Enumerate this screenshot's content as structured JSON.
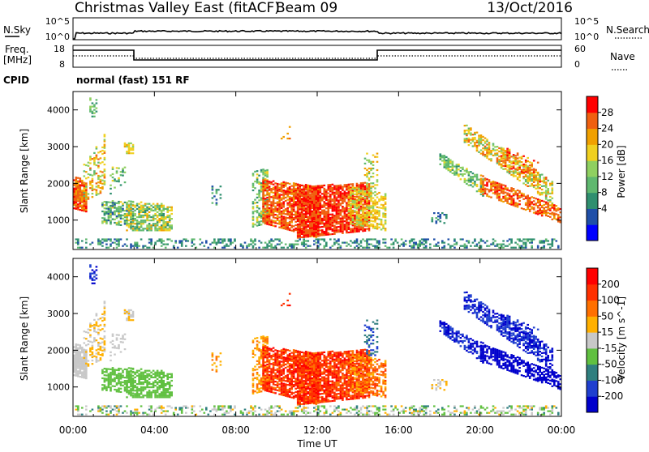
{
  "header": {
    "title": "Christmas Valley East (fitACF)",
    "beam": "Beam 09",
    "date": "13/Oct/2016"
  },
  "noise_panel": {
    "left_label": "N.Sky",
    "right_label": "N.Search",
    "left_ticks": [
      "10^5",
      "10^0"
    ],
    "right_ticks": [
      "10^5",
      "10^0"
    ]
  },
  "freq_panel": {
    "left_label_1": "Freq.",
    "left_label_2": "[MHz]",
    "right_label": "Nave",
    "left_ticks": [
      "18",
      "8"
    ],
    "right_ticks": [
      "60",
      "0"
    ]
  },
  "cpid": {
    "label": "CPID",
    "value": "normal (fast) 151 RF"
  },
  "colors": {
    "power": [
      "#0000ff",
      "#1f4fa8",
      "#2f8f6f",
      "#5fb86f",
      "#8fd060",
      "#f0d020",
      "#f0a000",
      "#f06010",
      "#ff0000"
    ],
    "velocity": [
      "#0000cc",
      "#1f3fcf",
      "#2f7f7f",
      "#60c040",
      "#c8c8c8",
      "#ffb000",
      "#ff7000",
      "#ff3000",
      "#ff0000"
    ]
  },
  "chart_data": [
    {
      "type": "heatmap",
      "name": "power",
      "ylabel": "Slant Range [km]",
      "colorbar_label": "Power [dB]",
      "colorbar_ticks": [
        "28",
        "24",
        "20",
        "16",
        "12",
        "8",
        "4"
      ],
      "y_ticks": [
        "4000",
        "3000",
        "2000",
        "1000"
      ],
      "ylim": [
        200,
        4500
      ],
      "xlim": [
        0,
        24
      ]
    },
    {
      "type": "heatmap",
      "name": "velocity",
      "ylabel": "Slant Range [km]",
      "colorbar_label": "Velocity [m s^-1]",
      "colorbar_ticks": [
        "200",
        "100",
        "50",
        "15",
        "-15",
        "-50",
        "-100",
        "-200"
      ],
      "y_ticks": [
        "4000",
        "3000",
        "2000",
        "1000"
      ],
      "ylim": [
        200,
        4500
      ],
      "xlim": [
        0,
        24
      ],
      "x_ticks": [
        "00:00",
        "04:00",
        "08:00",
        "12:00",
        "16:00",
        "20:00",
        "00:00"
      ],
      "xlabel": "Time UT"
    }
  ]
}
